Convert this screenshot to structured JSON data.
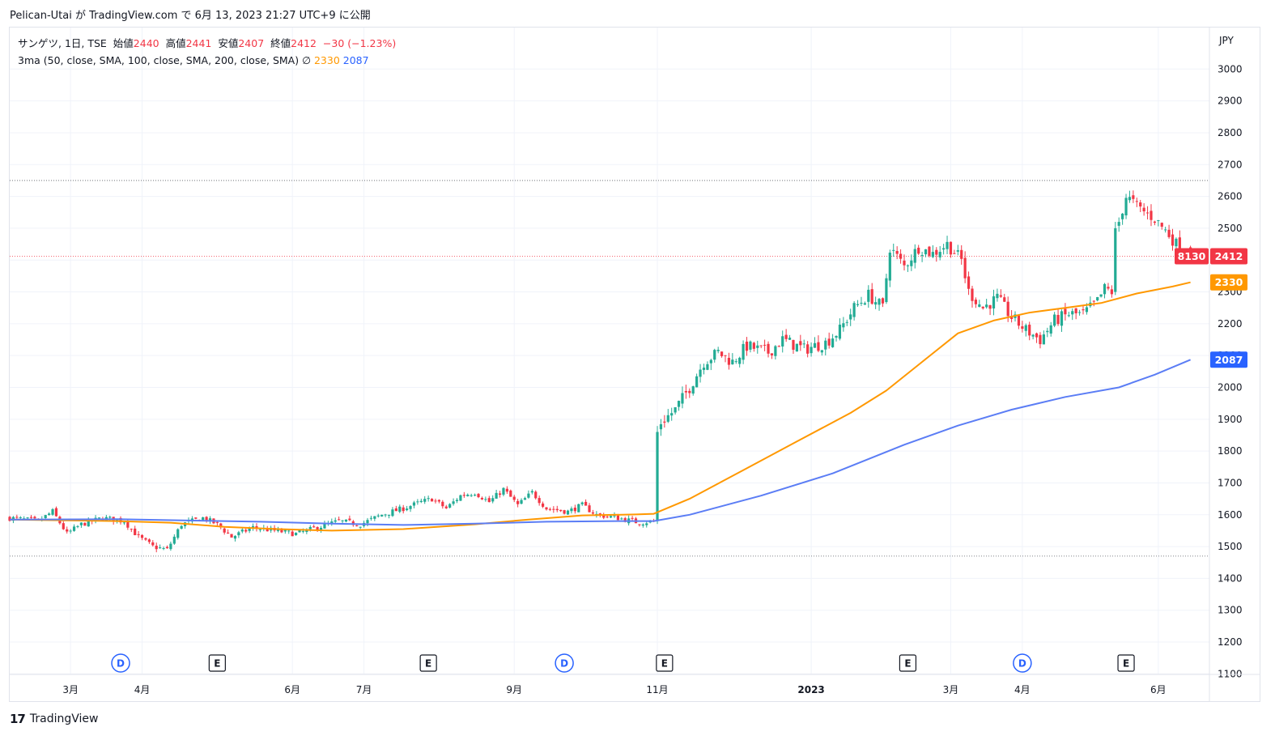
{
  "header": {
    "publisher": "Pelican-Utai",
    "text": "が TradingView.com で 6月 13, 2023 21:27 UTC+9 に公開"
  },
  "legend": {
    "symbol": "サンゲツ, 1日, TSE",
    "open_label": "始値",
    "open": "2440",
    "high_label": "高値",
    "high": "2441",
    "low_label": "安値",
    "low": "2407",
    "close_label": "終値",
    "close": "2412",
    "change": "−30 (−1.23%)",
    "indicator": "3ma (50, close, SMA, 100, close, SMA, 200, close, SMA)",
    "indicator_icon": "eye-off-icon",
    "ma100_value": "2330",
    "ma200_value": "2087"
  },
  "price_badges": {
    "countdown": "8130",
    "last": "2412",
    "ma100": "2330",
    "ma200": "2087"
  },
  "colors": {
    "up": "#22ab94",
    "down": "#f23645",
    "ma100": "#ff9800",
    "ma200": "#5b7df5",
    "event_dividend": "#2962ff"
  },
  "footer": {
    "brand": "TradingView"
  },
  "chart_data": {
    "type": "candlestick",
    "currency": "JPY",
    "ylim": [
      1100,
      3050
    ],
    "y_ticks": [
      1100,
      1200,
      1300,
      1400,
      1500,
      1600,
      1700,
      1800,
      1900,
      2000,
      2100,
      2200,
      2300,
      2400,
      2500,
      2600,
      2700,
      2800,
      2900,
      3000
    ],
    "x_ticks": [
      {
        "label": "3月",
        "day": 17
      },
      {
        "label": "4月",
        "day": 37
      },
      {
        "label": "6月",
        "day": 79
      },
      {
        "label": "7月",
        "day": 99
      },
      {
        "label": "9月",
        "day": 141
      },
      {
        "label": "11月",
        "day": 181
      },
      {
        "label": "2023",
        "day": 224
      },
      {
        "label": "3月",
        "day": 263
      },
      {
        "label": "4月",
        "day": 283
      },
      {
        "label": "6月",
        "day": 321
      }
    ],
    "last_price": 2412,
    "reference_lines": [
      2650,
      1470
    ],
    "events": [
      {
        "type": "D",
        "day": 31
      },
      {
        "type": "E",
        "day": 58
      },
      {
        "type": "E",
        "day": 117
      },
      {
        "type": "D",
        "day": 155
      },
      {
        "type": "E",
        "day": 183
      },
      {
        "type": "E",
        "day": 251
      },
      {
        "type": "D",
        "day": 283
      },
      {
        "type": "E",
        "day": 312
      }
    ],
    "price_path": [
      [
        0,
        1590
      ],
      [
        8,
        1580
      ],
      [
        12,
        1610
      ],
      [
        16,
        1540
      ],
      [
        20,
        1570
      ],
      [
        26,
        1590
      ],
      [
        32,
        1580
      ],
      [
        36,
        1530
      ],
      [
        40,
        1500
      ],
      [
        44,
        1490
      ],
      [
        48,
        1570
      ],
      [
        54,
        1590
      ],
      [
        58,
        1570
      ],
      [
        62,
        1530
      ],
      [
        68,
        1560
      ],
      [
        74,
        1550
      ],
      [
        80,
        1540
      ],
      [
        86,
        1560
      ],
      [
        92,
        1580
      ],
      [
        98,
        1570
      ],
      [
        104,
        1600
      ],
      [
        110,
        1620
      ],
      [
        115,
        1640
      ],
      [
        118,
        1650
      ],
      [
        122,
        1620
      ],
      [
        126,
        1660
      ],
      [
        130,
        1670
      ],
      [
        134,
        1640
      ],
      [
        138,
        1680
      ],
      [
        142,
        1630
      ],
      [
        146,
        1670
      ],
      [
        150,
        1620
      ],
      [
        156,
        1610
      ],
      [
        160,
        1630
      ],
      [
        164,
        1600
      ],
      [
        170,
        1590
      ],
      [
        176,
        1575
      ],
      [
        180,
        1580
      ],
      [
        181,
        1880
      ],
      [
        186,
        1930
      ],
      [
        190,
        2000
      ],
      [
        194,
        2080
      ],
      [
        198,
        2110
      ],
      [
        202,
        2080
      ],
      [
        206,
        2130
      ],
      [
        212,
        2110
      ],
      [
        216,
        2150
      ],
      [
        222,
        2120
      ],
      [
        228,
        2140
      ],
      [
        232,
        2180
      ],
      [
        236,
        2250
      ],
      [
        240,
        2290
      ],
      [
        244,
        2250
      ],
      [
        246,
        2440
      ],
      [
        250,
        2380
      ],
      [
        254,
        2440
      ],
      [
        258,
        2420
      ],
      [
        262,
        2450
      ],
      [
        266,
        2400
      ],
      [
        268,
        2300
      ],
      [
        272,
        2250
      ],
      [
        276,
        2280
      ],
      [
        280,
        2220
      ],
      [
        284,
        2180
      ],
      [
        288,
        2150
      ],
      [
        292,
        2210
      ],
      [
        296,
        2230
      ],
      [
        300,
        2230
      ],
      [
        304,
        2270
      ],
      [
        306,
        2310
      ],
      [
        308,
        2300
      ],
      [
        309,
        2480
      ],
      [
        312,
        2600
      ],
      [
        316,
        2560
      ],
      [
        320,
        2530
      ],
      [
        324,
        2480
      ],
      [
        328,
        2420
      ],
      [
        330,
        2412
      ]
    ],
    "series": [
      {
        "type": "line",
        "points": [
          [
            0,
            1585
          ],
          [
            30,
            1580
          ],
          [
            45,
            1575
          ],
          [
            60,
            1562
          ],
          [
            75,
            1555
          ],
          [
            90,
            1550
          ],
          [
            110,
            1555
          ],
          [
            130,
            1570
          ],
          [
            145,
            1585
          ],
          [
            160,
            1598
          ],
          [
            175,
            1601
          ],
          [
            180,
            1603
          ],
          [
            190,
            1650
          ],
          [
            205,
            1740
          ],
          [
            220,
            1830
          ],
          [
            235,
            1920
          ],
          [
            245,
            1990
          ],
          [
            255,
            2080
          ],
          [
            265,
            2170
          ],
          [
            275,
            2210
          ],
          [
            285,
            2235
          ],
          [
            295,
            2250
          ],
          [
            305,
            2265
          ],
          [
            315,
            2295
          ],
          [
            325,
            2317
          ],
          [
            330,
            2330
          ]
        ]
      },
      {
        "type": "line",
        "points": [
          [
            0,
            1585
          ],
          [
            30,
            1586
          ],
          [
            50,
            1582
          ],
          [
            70,
            1578
          ],
          [
            90,
            1572
          ],
          [
            110,
            1568
          ],
          [
            130,
            1572
          ],
          [
            150,
            1578
          ],
          [
            170,
            1580
          ],
          [
            180,
            1580
          ],
          [
            190,
            1600
          ],
          [
            210,
            1660
          ],
          [
            230,
            1730
          ],
          [
            250,
            1820
          ],
          [
            265,
            1880
          ],
          [
            280,
            1930
          ],
          [
            295,
            1970
          ],
          [
            310,
            2000
          ],
          [
            320,
            2040
          ],
          [
            330,
            2087
          ]
        ]
      }
    ]
  }
}
